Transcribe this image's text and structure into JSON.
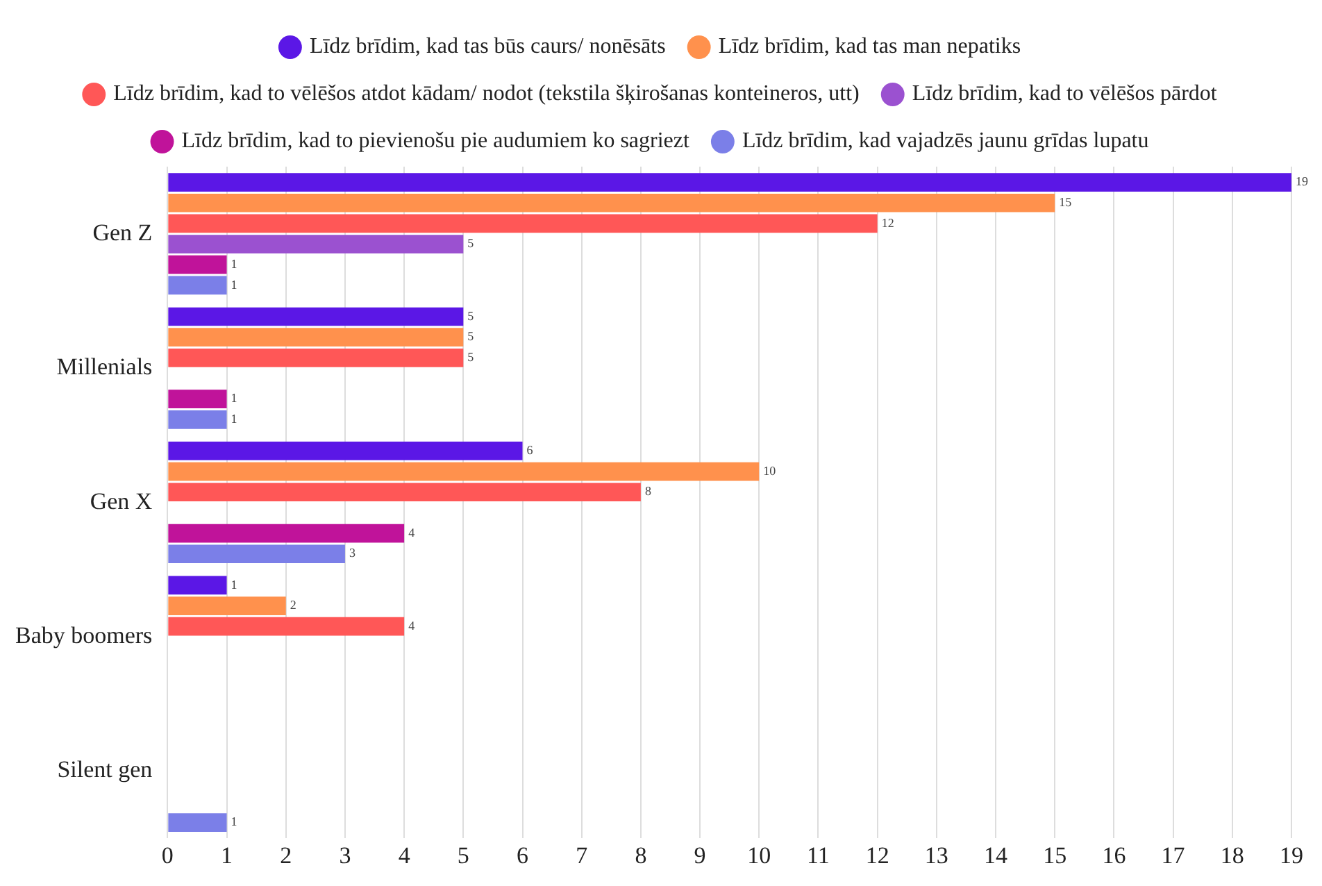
{
  "chart_data": {
    "type": "bar",
    "orientation": "horizontal",
    "categories": [
      "Gen Z",
      "Millenials",
      "Gen X",
      "Baby boomers",
      "Silent gen"
    ],
    "series": [
      {
        "name": "Līdz brīdim, kad tas būs caurs/ nonēsāts",
        "color": "#5b17e6",
        "values": [
          19,
          5,
          6,
          1,
          null
        ]
      },
      {
        "name": "Līdz brīdim, kad tas man nepatiks",
        "color": "#ff914d",
        "values": [
          15,
          5,
          10,
          2,
          null
        ]
      },
      {
        "name": "Līdz brīdim, kad to vēlēšos atdot kādam/ nodot (tekstila šķirošanas konteineros, utt)",
        "color": "#ff5757",
        "values": [
          12,
          5,
          8,
          4,
          null
        ]
      },
      {
        "name": "Līdz brīdim, kad to vēlēšos pārdot",
        "color": "#9b51d0",
        "values": [
          5,
          null,
          null,
          null,
          null
        ]
      },
      {
        "name": "Līdz brīdim, kad to pievienošu pie audumiem ko sagriezt",
        "color": "#c0139a",
        "values": [
          1,
          1,
          4,
          null,
          null
        ]
      },
      {
        "name": "Līdz brīdim, kad vajadzēs jaunu grīdas lupatu",
        "color": "#7b7fe8",
        "values": [
          1,
          1,
          3,
          null,
          1
        ]
      }
    ],
    "xlim": [
      0,
      19
    ],
    "xticks": [
      0,
      1,
      2,
      3,
      4,
      5,
      6,
      7,
      8,
      9,
      10,
      11,
      12,
      13,
      14,
      15,
      16,
      17,
      18,
      19
    ],
    "grid": "x",
    "legend": "top",
    "data_labels": true
  }
}
